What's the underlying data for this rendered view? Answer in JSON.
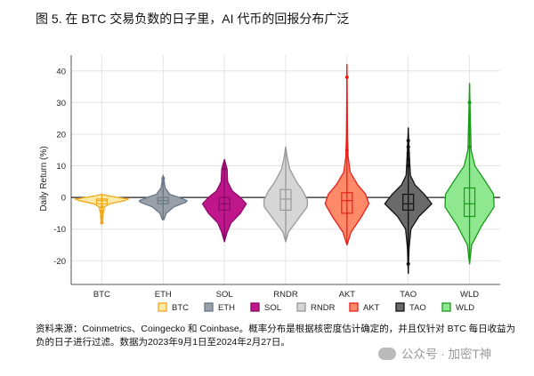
{
  "title": "图 5. 在 BTC 交易负数的日子里，AI 代币的回报分布广泛",
  "note": "资料来源：Coinmetrics、Coingecko 和 Coinbase。概率分布是根据核密度估计确定的，并且仅针对 BTC 每日收益为负的日子进行过滤。数据为2023年9月1日至2024年2月27日。",
  "watermark": "公众号 · 加密T神",
  "chart_data": {
    "type": "violin",
    "title": "",
    "xlabel": "",
    "ylabel": "Daily Return (%)",
    "ylim": [
      -27.5,
      45
    ],
    "yticks": [
      -20,
      -10,
      0,
      10,
      20,
      30,
      40
    ],
    "grid": true,
    "legend_placement": "bottom",
    "categories": [
      "BTC",
      "ETH",
      "SOL",
      "RNDR",
      "AKT",
      "TAO",
      "WLD"
    ],
    "series": [
      {
        "name": "BTC",
        "fill": "#fde9a8",
        "stroke": "#f0a818",
        "min": -8,
        "max": 1,
        "q1": -2,
        "median": -1,
        "q3": -0.5,
        "outliers": [
          -3,
          -4.5,
          -6,
          -8
        ],
        "density": [
          [
            -8,
            0.03
          ],
          [
            -5,
            0.05
          ],
          [
            -3,
            0.1
          ],
          [
            -2,
            0.3
          ],
          [
            -1,
            0.85
          ],
          [
            -0.5,
            1
          ],
          [
            0,
            0.6
          ],
          [
            0.5,
            0.25
          ],
          [
            1,
            0
          ]
        ]
      },
      {
        "name": "ETH",
        "fill": "#9aa0a8",
        "stroke": "#667788",
        "min": -7,
        "max": 7,
        "q1": -2,
        "median": -1,
        "q3": 0,
        "outliers": [
          6
        ],
        "density": [
          [
            -7,
            0.03
          ],
          [
            -5,
            0.12
          ],
          [
            -3,
            0.4
          ],
          [
            -1.5,
            0.85
          ],
          [
            -1,
            0.9
          ],
          [
            0,
            0.6
          ],
          [
            1,
            0.25
          ],
          [
            3,
            0.08
          ],
          [
            5,
            0.04
          ],
          [
            7,
            0
          ]
        ]
      },
      {
        "name": "SOL",
        "fill": "#c0168c",
        "stroke": "#8a0a68",
        "min": -14,
        "max": 12,
        "q1": -4,
        "median": -2,
        "q3": 0,
        "outliers": [
          -12,
          9
        ],
        "density": [
          [
            -14,
            0
          ],
          [
            -11,
            0.1
          ],
          [
            -8,
            0.25
          ],
          [
            -5,
            0.6
          ],
          [
            -2,
            0.82
          ],
          [
            0,
            0.6
          ],
          [
            2,
            0.3
          ],
          [
            5,
            0.12
          ],
          [
            9,
            0.1
          ],
          [
            12,
            0
          ]
        ]
      },
      {
        "name": "RNDR",
        "fill": "#d6d6d6",
        "stroke": "#999999",
        "min": -14,
        "max": 16,
        "q1": -4,
        "median": -0.5,
        "q3": 2.5,
        "outliers": [],
        "density": [
          [
            -14,
            0
          ],
          [
            -11,
            0.1
          ],
          [
            -7,
            0.45
          ],
          [
            -3,
            0.8
          ],
          [
            -1,
            0.82
          ],
          [
            2,
            0.65
          ],
          [
            5,
            0.4
          ],
          [
            9,
            0.15
          ],
          [
            13,
            0.05
          ],
          [
            16,
            0
          ]
        ]
      },
      {
        "name": "AKT",
        "fill": "#ff8a6a",
        "stroke": "#e8201a",
        "min": -15,
        "max": 42,
        "q1": -5,
        "median": -1,
        "q3": 1.5,
        "outliers": [
          38,
          15
        ],
        "density": [
          [
            -15,
            0
          ],
          [
            -11,
            0.15
          ],
          [
            -6,
            0.55
          ],
          [
            -2,
            0.82
          ],
          [
            1,
            0.7
          ],
          [
            4,
            0.4
          ],
          [
            8,
            0.12
          ],
          [
            13,
            0.04
          ],
          [
            20,
            0.02
          ],
          [
            42,
            0
          ]
        ]
      },
      {
        "name": "TAO",
        "fill": "#6a6a6a",
        "stroke": "#111111",
        "min": -24,
        "max": 22,
        "q1": -4,
        "median": -2,
        "q3": 1,
        "outliers": [
          -21,
          10,
          12,
          14,
          16,
          18
        ],
        "density": [
          [
            -24,
            0
          ],
          [
            -16,
            0.03
          ],
          [
            -10,
            0.1
          ],
          [
            -6,
            0.4
          ],
          [
            -2,
            0.88
          ],
          [
            1,
            0.6
          ],
          [
            4,
            0.25
          ],
          [
            7,
            0.08
          ],
          [
            15,
            0.03
          ],
          [
            22,
            0
          ]
        ]
      },
      {
        "name": "WLD",
        "fill": "#8fe88f",
        "stroke": "#1a9a1a",
        "min": -21,
        "max": 36,
        "q1": -6,
        "median": -2,
        "q3": 3,
        "outliers": [
          30,
          20,
          16
        ],
        "density": [
          [
            -21,
            0
          ],
          [
            -15,
            0.08
          ],
          [
            -9,
            0.45
          ],
          [
            -3,
            0.92
          ],
          [
            1,
            0.9
          ],
          [
            5,
            0.6
          ],
          [
            10,
            0.2
          ],
          [
            15,
            0.06
          ],
          [
            25,
            0.03
          ],
          [
            36,
            0
          ]
        ]
      }
    ]
  }
}
